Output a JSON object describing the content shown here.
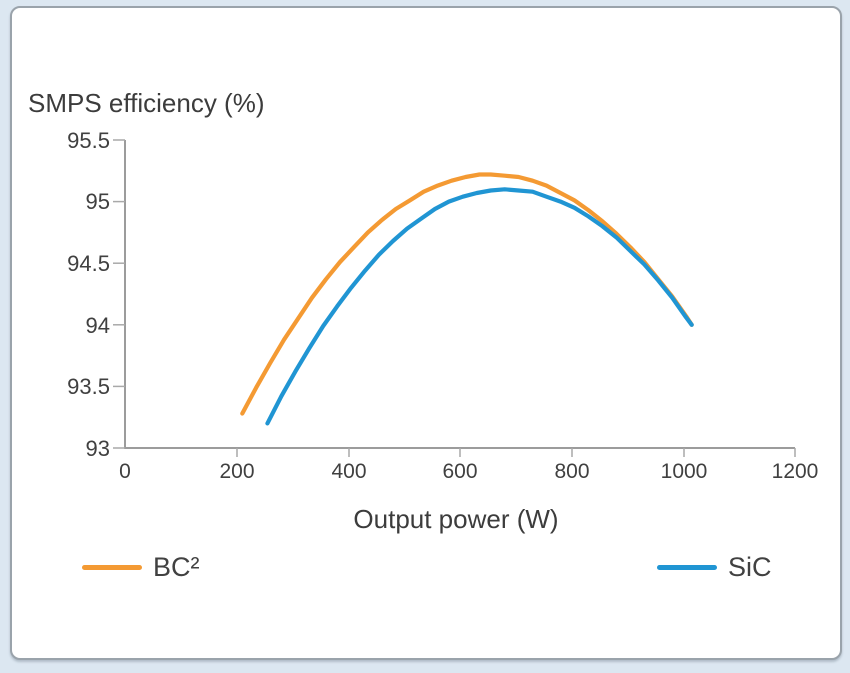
{
  "window": {
    "background_color": "#dce7f1",
    "card_background": "#ffffff",
    "card_border_color": "#9aa3ab"
  },
  "chart_data": {
    "type": "line",
    "title": "SMPS efficiency (%)",
    "xlabel": "Output power (W)",
    "xlim": [
      0,
      1200
    ],
    "ylim": [
      93,
      95.5
    ],
    "x_tick_labels": [
      "0",
      "200",
      "400",
      "600",
      "800",
      "1000",
      "1200"
    ],
    "y_tick_labels": [
      "95.5",
      "95",
      "94.5",
      "94",
      "93.5",
      "93"
    ],
    "grid": false,
    "legend_position": "bottom",
    "axis_color": "#9c9c9c",
    "text_color": "#3c3c3c",
    "series": [
      {
        "name": "BC²",
        "color": "#F49A33",
        "points": [
          [
            210,
            93.28
          ],
          [
            235,
            93.49
          ],
          [
            260,
            93.69
          ],
          [
            285,
            93.88
          ],
          [
            310,
            94.05
          ],
          [
            335,
            94.22
          ],
          [
            360,
            94.37
          ],
          [
            385,
            94.51
          ],
          [
            410,
            94.63
          ],
          [
            435,
            94.75
          ],
          [
            460,
            94.85
          ],
          [
            485,
            94.94
          ],
          [
            510,
            95.01
          ],
          [
            535,
            95.08
          ],
          [
            560,
            95.13
          ],
          [
            585,
            95.17
          ],
          [
            610,
            95.2
          ],
          [
            635,
            95.22
          ],
          [
            655,
            95.22
          ],
          [
            680,
            95.21
          ],
          [
            705,
            95.2
          ],
          [
            730,
            95.17
          ],
          [
            755,
            95.13
          ],
          [
            780,
            95.07
          ],
          [
            805,
            95.01
          ],
          [
            830,
            94.93
          ],
          [
            855,
            94.84
          ],
          [
            880,
            94.74
          ],
          [
            905,
            94.63
          ],
          [
            930,
            94.51
          ],
          [
            955,
            94.37
          ],
          [
            980,
            94.23
          ],
          [
            1005,
            94.07
          ],
          [
            1015,
            94.0
          ]
        ]
      },
      {
        "name": "SiC",
        "color": "#2095D3",
        "points": [
          [
            255,
            93.2
          ],
          [
            280,
            93.42
          ],
          [
            305,
            93.62
          ],
          [
            330,
            93.81
          ],
          [
            355,
            93.99
          ],
          [
            380,
            94.15
          ],
          [
            405,
            94.3
          ],
          [
            430,
            94.44
          ],
          [
            455,
            94.57
          ],
          [
            480,
            94.68
          ],
          [
            505,
            94.78
          ],
          [
            530,
            94.86
          ],
          [
            555,
            94.94
          ],
          [
            580,
            95.0
          ],
          [
            605,
            95.04
          ],
          [
            630,
            95.07
          ],
          [
            655,
            95.09
          ],
          [
            680,
            95.1
          ],
          [
            705,
            95.09
          ],
          [
            730,
            95.08
          ],
          [
            755,
            95.04
          ],
          [
            780,
            95.0
          ],
          [
            805,
            94.95
          ],
          [
            830,
            94.88
          ],
          [
            855,
            94.8
          ],
          [
            880,
            94.71
          ],
          [
            905,
            94.6
          ],
          [
            930,
            94.49
          ],
          [
            955,
            94.36
          ],
          [
            980,
            94.22
          ],
          [
            1005,
            94.06
          ],
          [
            1015,
            94.0
          ]
        ]
      }
    ]
  }
}
